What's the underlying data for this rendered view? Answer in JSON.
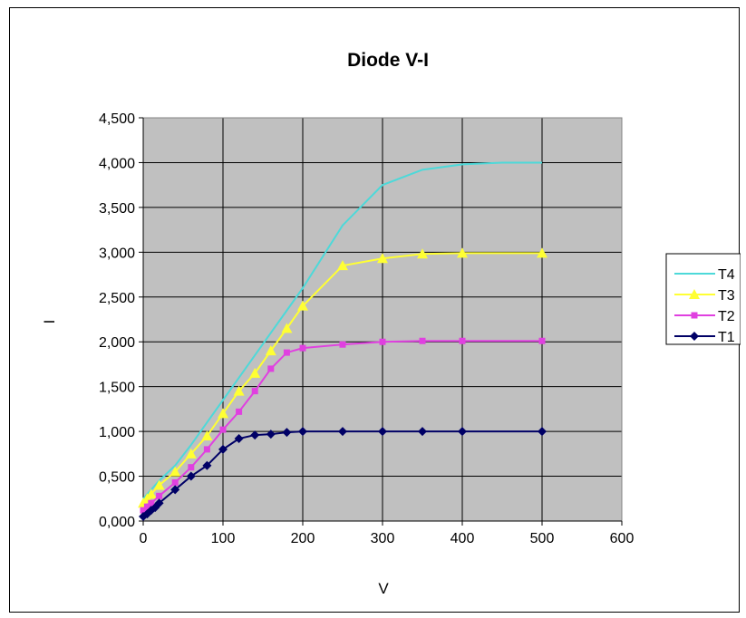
{
  "chart_data": {
    "type": "scatter",
    "title": "Diode V-I",
    "xlabel": "V",
    "ylabel": "I",
    "xlim": [
      0,
      600
    ],
    "ylim": [
      0,
      4.5
    ],
    "xticks": [
      0,
      100,
      200,
      300,
      400,
      500,
      600
    ],
    "xtick_labels": [
      "0",
      "100",
      "200",
      "300",
      "400",
      "500",
      "600"
    ],
    "yticks": [
      0,
      0.5,
      1,
      1.5,
      2,
      2.5,
      3,
      3.5,
      4,
      4.5
    ],
    "ytick_labels": [
      "0,000",
      "0,500",
      "1,000",
      "1,500",
      "2,000",
      "2,500",
      "3,000",
      "3,500",
      "4,000",
      "4,500"
    ],
    "grid": true,
    "plot_background": "#c0c0c0",
    "legend_position": "right",
    "series": [
      {
        "name": "T4",
        "color": "#4dd9d9",
        "marker": "none",
        "x": [
          0,
          5,
          10,
          20,
          40,
          60,
          80,
          100,
          120,
          140,
          160,
          180,
          200,
          250,
          300,
          350,
          400,
          450,
          500
        ],
        "y": [
          0.25,
          0.3,
          0.35,
          0.45,
          0.62,
          0.85,
          1.1,
          1.35,
          1.6,
          1.85,
          2.1,
          2.35,
          2.6,
          3.3,
          3.75,
          3.92,
          3.98,
          4.0,
          4.0
        ]
      },
      {
        "name": "T3",
        "color": "#ffff33",
        "marker": "triangle",
        "x": [
          0,
          5,
          10,
          20,
          40,
          60,
          80,
          100,
          120,
          140,
          160,
          180,
          200,
          250,
          300,
          350,
          400,
          500
        ],
        "y": [
          0.2,
          0.25,
          0.3,
          0.4,
          0.55,
          0.75,
          0.95,
          1.2,
          1.45,
          1.65,
          1.9,
          2.15,
          2.4,
          2.85,
          2.93,
          2.98,
          2.99,
          2.99
        ]
      },
      {
        "name": "T2",
        "color": "#e040e0",
        "marker": "square",
        "x": [
          0,
          5,
          10,
          20,
          40,
          60,
          80,
          100,
          120,
          140,
          160,
          180,
          200,
          250,
          300,
          350,
          400,
          500
        ],
        "y": [
          0.12,
          0.16,
          0.2,
          0.28,
          0.43,
          0.6,
          0.8,
          1.02,
          1.22,
          1.45,
          1.7,
          1.88,
          1.93,
          1.97,
          2.0,
          2.01,
          2.01,
          2.01
        ]
      },
      {
        "name": "T1",
        "color": "#000066",
        "marker": "diamond",
        "x": [
          0,
          5,
          10,
          15,
          20,
          40,
          60,
          80,
          100,
          120,
          140,
          160,
          180,
          200,
          250,
          300,
          350,
          400,
          500
        ],
        "y": [
          0.05,
          0.08,
          0.12,
          0.15,
          0.2,
          0.35,
          0.5,
          0.62,
          0.8,
          0.92,
          0.96,
          0.97,
          0.99,
          1.0,
          1.0,
          1.0,
          1.0,
          1.0,
          1.0
        ]
      }
    ]
  }
}
